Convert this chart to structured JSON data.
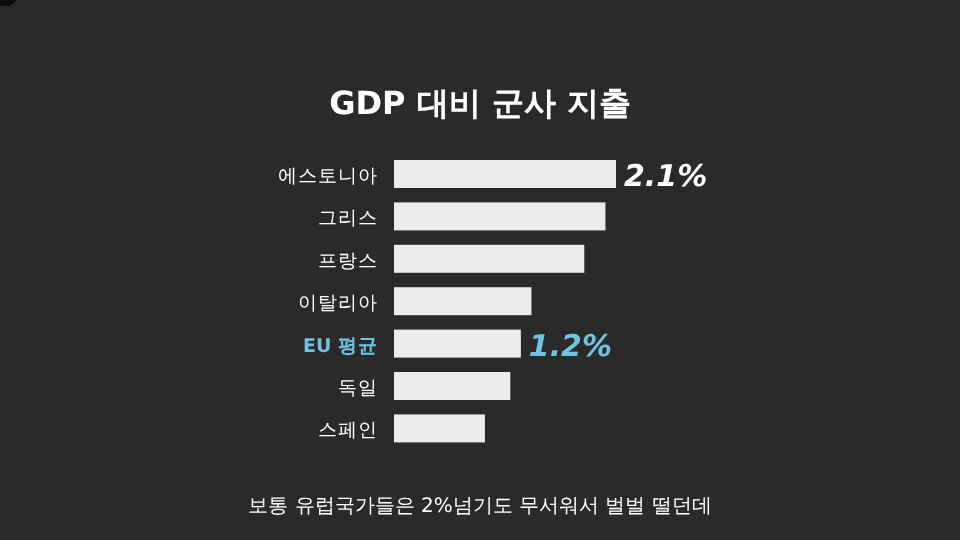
{
  "chart_data": {
    "type": "bar",
    "orientation": "horizontal",
    "title": "GDP 대비 군사 지출",
    "categories": [
      "에스토니아",
      "그리스",
      "프랑스",
      "이탈리아",
      "EU 평균",
      "독일",
      "스페인"
    ],
    "values": [
      2.1,
      2.0,
      1.8,
      1.3,
      1.2,
      1.1,
      0.86
    ],
    "value_labels": [
      "2.1%",
      null,
      null,
      null,
      "1.2%",
      null,
      null
    ],
    "color": "#ececec",
    "annotations": [
      "보통 유럽국가들은 2%넘기도 무서워서 벌벌 떨던데"
    ]
  }
}
